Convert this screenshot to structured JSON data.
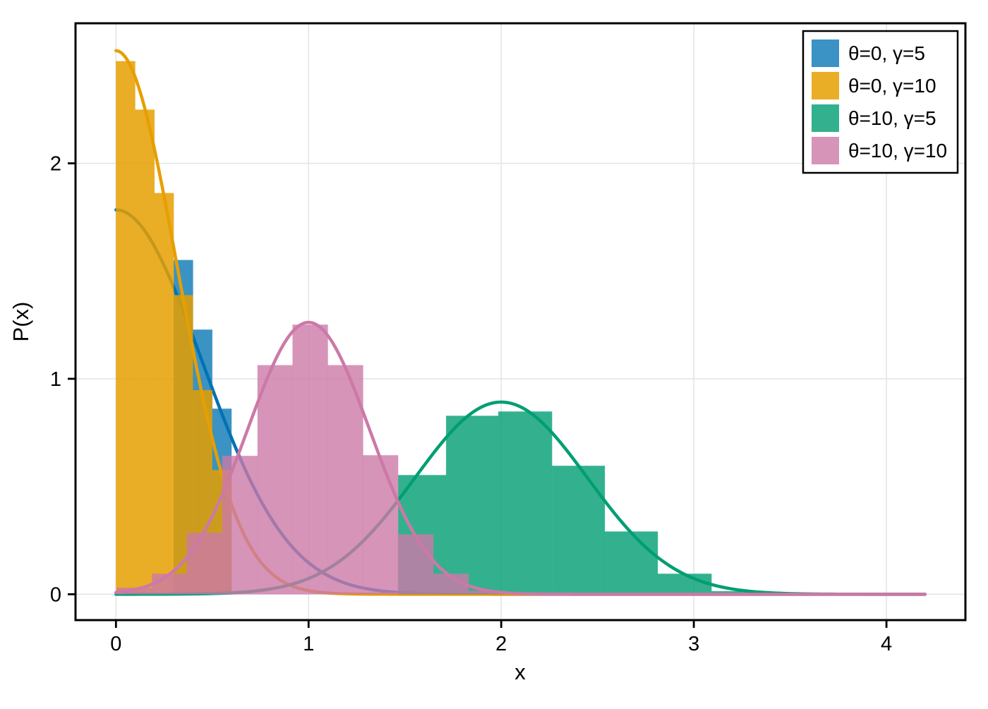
{
  "chart_data": {
    "type": "histogram-density",
    "title": "",
    "xlabel": "x",
    "ylabel": "P(x)",
    "x_ticks": [
      0,
      1,
      2,
      3,
      4
    ],
    "y_ticks": [
      0,
      1,
      2
    ],
    "xlim": [
      -0.21,
      4.41
    ],
    "ylim": [
      -0.12,
      2.65
    ],
    "grid": true,
    "grid_color": "#e5e5e5",
    "frame_color": "#000000",
    "background": "#ffffff",
    "legend_position": "top-right",
    "series": [
      {
        "label": "θ=0, γ=5",
        "line_color": "#0072B2",
        "fill_color": "rgba(0,114,178,0.77)",
        "swatch_color": "#3B92C4",
        "curve": {
          "shape": "normal",
          "mu": 0,
          "sigma": 0.4472,
          "peak": 1.784,
          "x_start": 0,
          "x_end": 4.2
        },
        "histogram": {
          "bin_edges": [
            0.3,
            0.4,
            0.5,
            0.6
          ],
          "heights": [
            1.551,
            1.228,
            0.861
          ]
        }
      },
      {
        "label": "θ=0, γ=10",
        "line_color": "#E69F00",
        "fill_color": "rgba(230,159,0,0.85)",
        "swatch_color": "#EAAD26",
        "curve": {
          "shape": "normal",
          "mu": 0,
          "sigma": 0.3162,
          "peak": 2.523,
          "x_start": 0,
          "x_end": 4.2
        },
        "histogram": {
          "bin_edges": [
            0.0,
            0.1,
            0.2,
            0.3,
            0.4,
            0.5,
            0.6
          ],
          "heights": [
            2.474,
            2.249,
            1.862,
            1.388,
            0.947,
            0.576
          ]
        }
      },
      {
        "label": "θ=10, γ=5",
        "line_color": "#009E73",
        "fill_color": "rgba(0,158,115,0.8)",
        "swatch_color": "#33B18F",
        "curve": {
          "shape": "normal",
          "mu": 2,
          "sigma": 0.4472,
          "peak": 0.892,
          "x_start": 0,
          "x_end": 4.2
        },
        "histogram": {
          "bin_edges": [
            1.465,
            1.714,
            1.985,
            2.264,
            2.538,
            2.813,
            3.092,
            3.37
          ],
          "heights": [
            0.553,
            0.828,
            0.848,
            0.596,
            0.291,
            0.095,
            0.014
          ]
        }
      },
      {
        "label": "θ=10, γ=10",
        "line_color": "#CC79A7",
        "fill_color": "rgba(204,121,167,0.8)",
        "swatch_color": "#D694B9",
        "curve": {
          "shape": "normal",
          "mu": 1,
          "sigma": 0.3162,
          "peak": 1.262,
          "x_start": 0,
          "x_end": 4.2
        },
        "histogram": {
          "bin_edges": [
            0.004,
            0.187,
            0.369,
            0.552,
            0.735,
            0.917,
            1.1,
            1.283,
            1.465,
            1.648,
            1.831,
            2.013
          ],
          "heights": [
            0.03,
            0.095,
            0.285,
            0.642,
            1.063,
            1.251,
            1.063,
            0.645,
            0.278,
            0.095,
            0.016
          ]
        }
      }
    ]
  }
}
